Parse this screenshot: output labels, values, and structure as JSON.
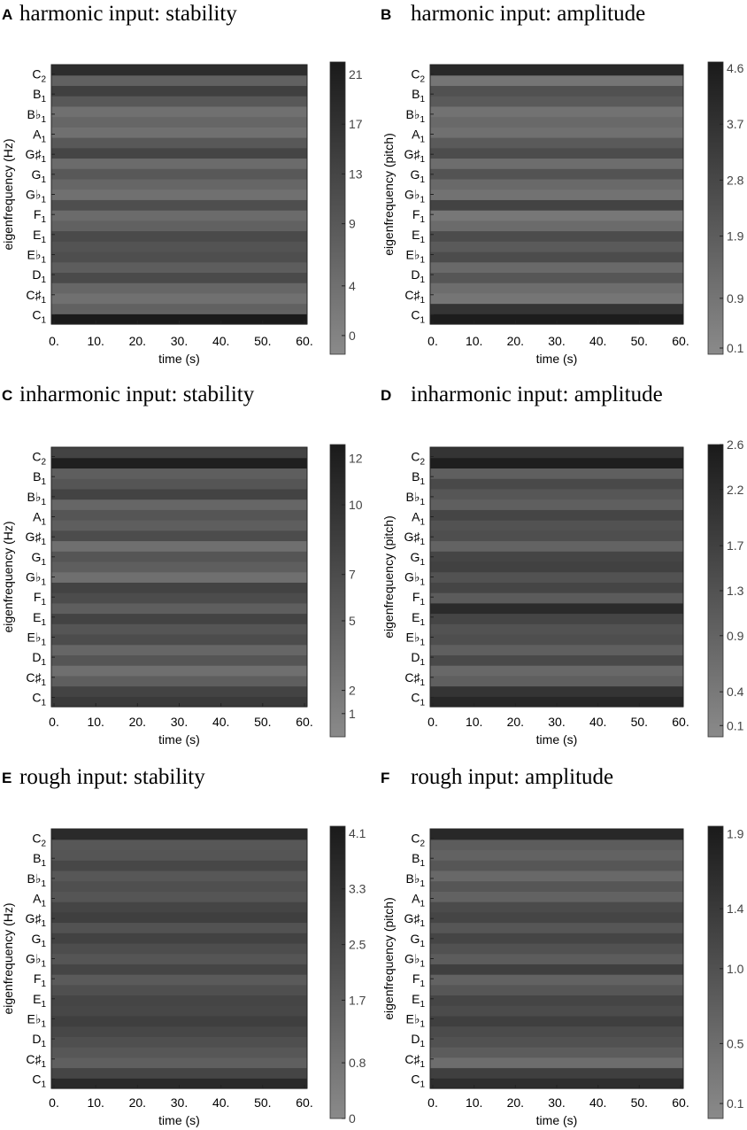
{
  "chart_data": [
    {
      "type": "heatmap",
      "panel": "A",
      "title": "harmonic input: stability",
      "xlabel": "time (s)",
      "ylabel": "eigenfrequency (Hz)",
      "x_ticks": [
        "0.",
        "10.",
        "20.",
        "30.",
        "40.",
        "50.",
        "60."
      ],
      "xlim": [
        0,
        60
      ],
      "y_categories": [
        "C1",
        "C♯1",
        "D1",
        "E♭1",
        "E1",
        "F1",
        "G♭1",
        "G1",
        "G♯1",
        "A1",
        "B♭1",
        "B1",
        "C2"
      ],
      "colorbar_ticks": [
        {
          "label": "21",
          "value": 21
        },
        {
          "label": "17",
          "value": 17
        },
        {
          "label": "13",
          "value": 13
        },
        {
          "label": "9",
          "value": 9
        },
        {
          "label": "4",
          "value": 4
        },
        {
          "label": "0",
          "value": 0
        }
      ],
      "colorbar_range": [
        -1.5,
        22
      ],
      "row_values": [
        22,
        7,
        4,
        6,
        12,
        8,
        11,
        10,
        12,
        7,
        5,
        11,
        4,
        6,
        9,
        5,
        13,
        9,
        4,
        6,
        4,
        9,
        14,
        7,
        18
      ]
    },
    {
      "type": "heatmap",
      "panel": "B",
      "title": "harmonic input: amplitude",
      "xlabel": "time (s)",
      "ylabel": "eigenfrequency (pitch)",
      "x_ticks": [
        "0.",
        "10.",
        "20.",
        "30.",
        "40.",
        "50.",
        "60."
      ],
      "xlim": [
        0,
        60
      ],
      "y_categories": [
        "C1",
        "C♯1",
        "D1",
        "E♭1",
        "E1",
        "F1",
        "G♭1",
        "G1",
        "G♯1",
        "A1",
        "B♭1",
        "B1",
        "C2"
      ],
      "colorbar_ticks": [
        {
          "label": "4.6",
          "value": 4.6
        },
        {
          "label": "3.7",
          "value": 3.7
        },
        {
          "label": "2.8",
          "value": 2.8
        },
        {
          "label": "1.9",
          "value": 1.9
        },
        {
          "label": "0.9",
          "value": 0.9
        },
        {
          "label": "0.1",
          "value": 0.1
        }
      ],
      "colorbar_range": [
        0,
        4.7
      ],
      "row_values": [
        4.6,
        3.6,
        0.9,
        1.2,
        2.2,
        1.4,
        2.6,
        2.0,
        2.6,
        1.3,
        0.8,
        3.0,
        1.0,
        1.4,
        2.3,
        1.2,
        2.6,
        2.0,
        1.1,
        1.4,
        1.0,
        2.0,
        2.4,
        0.9,
        4.1
      ]
    },
    {
      "type": "heatmap",
      "panel": "C",
      "title": "inharmonic input: stability",
      "xlabel": "time (s)",
      "ylabel": "eigenfrequency (Hz)",
      "x_ticks": [
        "0.",
        "10.",
        "20.",
        "30.",
        "40.",
        "50.",
        "60."
      ],
      "xlim": [
        0,
        60
      ],
      "y_categories": [
        "C1",
        "C♯1",
        "D1",
        "E♭1",
        "E1",
        "F1",
        "G♭1",
        "G1",
        "G♯1",
        "A1",
        "B♭1",
        "B1",
        "C2"
      ],
      "colorbar_ticks": [
        {
          "label": "12",
          "value": 12
        },
        {
          "label": "10",
          "value": 10
        },
        {
          "label": "7",
          "value": 7
        },
        {
          "label": "5",
          "value": 5
        },
        {
          "label": "2",
          "value": 2
        },
        {
          "label": "1",
          "value": 1
        }
      ],
      "colorbar_range": [
        0,
        12.6
      ],
      "row_values": [
        9,
        8,
        5,
        3,
        6,
        4,
        7,
        6,
        8,
        5,
        7,
        8,
        3,
        5,
        6,
        3,
        7,
        5,
        6,
        4,
        8,
        6,
        5,
        12,
        8
      ]
    },
    {
      "type": "heatmap",
      "panel": "D",
      "title": "inharmonic input: amplitude",
      "xlabel": "time (s)",
      "ylabel": "eigenfrequency (pitch)",
      "x_ticks": [
        "0.",
        "10.",
        "20.",
        "30.",
        "40.",
        "50.",
        "60."
      ],
      "xlim": [
        0,
        60
      ],
      "y_categories": [
        "C1",
        "C♯1",
        "D1",
        "E♭1",
        "E1",
        "F1",
        "G♭1",
        "G1",
        "G♯1",
        "A1",
        "B♭1",
        "B1",
        "C2"
      ],
      "colorbar_ticks": [
        {
          "label": "2.6",
          "value": 2.6
        },
        {
          "label": "2.2",
          "value": 2.2
        },
        {
          "label": "1.7",
          "value": 1.7
        },
        {
          "label": "1.3",
          "value": 1.3
        },
        {
          "label": "0.9",
          "value": 0.9
        },
        {
          "label": "0.4",
          "value": 0.4
        },
        {
          "label": "0.1",
          "value": 0.1
        }
      ],
      "colorbar_range": [
        0,
        2.6
      ],
      "row_values": [
        2.3,
        2.0,
        1.0,
        0.8,
        1.5,
        1.0,
        1.4,
        1.3,
        1.6,
        2.2,
        1.1,
        1.6,
        1.3,
        1.7,
        1.6,
        0.9,
        1.4,
        1.3,
        1.6,
        1.0,
        1.2,
        1.5,
        1.0,
        2.5,
        2.0
      ]
    },
    {
      "type": "heatmap",
      "panel": "E",
      "title": "rough input: stability",
      "xlabel": "time (s)",
      "ylabel": "eigenfrequency (Hz)",
      "x_ticks": [
        "0.",
        "10.",
        "20.",
        "30.",
        "40.",
        "50.",
        "60."
      ],
      "xlim": [
        0,
        60
      ],
      "y_categories": [
        "C1",
        "C♯1",
        "D1",
        "E♭1",
        "E1",
        "F1",
        "G♭1",
        "G1",
        "G♯1",
        "A1",
        "B♭1",
        "B1",
        "C2"
      ],
      "colorbar_ticks": [
        {
          "label": "4.1",
          "value": 4.1
        },
        {
          "label": "3.3",
          "value": 3.3
        },
        {
          "label": "2.5",
          "value": 2.5
        },
        {
          "label": "1.7",
          "value": 1.7
        },
        {
          "label": "0.8",
          "value": 0.8
        },
        {
          "label": "0",
          "value": 0
        }
      ],
      "colorbar_range": [
        0,
        4.2
      ],
      "row_values": [
        3.6,
        2.6,
        1.6,
        1.9,
        2.2,
        2.5,
        2.8,
        2.5,
        2.6,
        2.2,
        1.8,
        2.6,
        2.0,
        2.3,
        2.7,
        2.1,
        2.8,
        2.6,
        2.0,
        2.2,
        1.9,
        2.5,
        2.0,
        1.9,
        3.6
      ]
    },
    {
      "type": "heatmap",
      "panel": "F",
      "title": "rough input: amplitude",
      "xlabel": "time (s)",
      "ylabel": "eigenfrequency (pitch)",
      "x_ticks": [
        "0.",
        "10.",
        "20.",
        "30.",
        "40.",
        "50.",
        "60."
      ],
      "xlim": [
        0,
        60
      ],
      "y_categories": [
        "C1",
        "C♯1",
        "D1",
        "E♭1",
        "E1",
        "F1",
        "G♭1",
        "G1",
        "G♯1",
        "A1",
        "B♭1",
        "B1",
        "C2"
      ],
      "colorbar_ticks": [
        {
          "label": "1.9",
          "value": 1.9
        },
        {
          "label": "1.4",
          "value": 1.4
        },
        {
          "label": "1.0",
          "value": 1.0
        },
        {
          "label": "0.5",
          "value": 0.5
        },
        {
          "label": "0.1",
          "value": 0.1
        }
      ],
      "colorbar_range": [
        0,
        1.95
      ],
      "row_values": [
        1.6,
        1.3,
        0.5,
        0.8,
        1.0,
        1.1,
        1.3,
        1.1,
        1.2,
        0.9,
        0.7,
        1.3,
        0.8,
        1.0,
        1.2,
        0.9,
        1.2,
        1.1,
        0.7,
        0.9,
        0.6,
        0.9,
        0.7,
        0.8,
        1.7
      ]
    }
  ]
}
